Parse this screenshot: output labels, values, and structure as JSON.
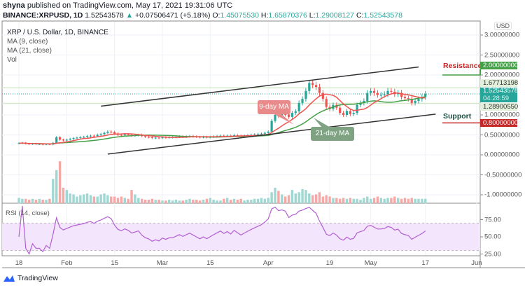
{
  "header": {
    "publisher": "shyna",
    "published_text": "published on TradingView.com, May 17, 2021 19:31:06 UTC",
    "symbol": "BINANCE:XRPUSD, 1D",
    "last": "1.52543578",
    "change": "+0.07506471 (+5.18%)",
    "o_label": "O:",
    "o": "1.45075530",
    "h_label": "H:",
    "h": "1.65870376",
    "l_label": "L:",
    "l": "1.29008127",
    "c_label": "C:",
    "c": "1.52543578"
  },
  "legend": {
    "title": "XRP / U.S. Dollar, 1D, BINANCE",
    "ma9": "MA (9, close)",
    "ma21": "MA (21, close)",
    "vol": "Vol"
  },
  "currency": "USD",
  "annotations": {
    "resistance": "Resistance",
    "resistance_value": "2.00000000",
    "support": "Support",
    "support_value": "0.80000000",
    "level_high": "1.67713198",
    "level_low": "1.28900550",
    "last_price": "1.52543578",
    "countdown": "04:28:59",
    "ma9_callout": "9-day MA",
    "ma21_callout": "21-day MA"
  },
  "rsi": {
    "label": "RSI (14, close)",
    "ticks": [
      "75.00",
      "50.00",
      "25.00"
    ]
  },
  "brand": "TradingView",
  "colors": {
    "up": "#26a69a",
    "down": "#ef5350",
    "ma9": "#ef5350",
    "ma21": "#43a047",
    "rsi": "#b35fd3",
    "resistance": "#43a047",
    "support": "#c62828"
  },
  "chart_data": {
    "type": "candlestick",
    "title": "XRP / U.S. Dollar, 1D, BINANCE",
    "y_ticks": [
      "3.00000000",
      "2.50000000",
      "2.00000000",
      "1.00000000",
      "0.50000000",
      "0.00000000",
      "-0.50000000",
      "-1.00000000"
    ],
    "y_tick_values": [
      3,
      2.5,
      2,
      1,
      0.5,
      0,
      -0.5,
      -1
    ],
    "ylim": [
      -1.2,
      3.1
    ],
    "x_ticks": [
      {
        "label": "18",
        "date": "2021-01-18"
      },
      {
        "label": "Feb",
        "date": "2021-02-01"
      },
      {
        "label": "15",
        "date": "2021-02-15"
      },
      {
        "label": "Mar",
        "date": "2021-03-01"
      },
      {
        "label": "15",
        "date": "2021-03-15"
      },
      {
        "label": "Apr",
        "date": "2021-04-01"
      },
      {
        "label": "19",
        "date": "2021-04-19"
      },
      {
        "label": "May",
        "date": "2021-05-01"
      },
      {
        "label": "17",
        "date": "2021-05-17"
      },
      {
        "label": "Jun",
        "date": "2021-06-01"
      }
    ],
    "closes_by_month": [
      {
        "month": "2021-01",
        "first_day": 18,
        "values": [
          0.29,
          0.3,
          0.28,
          0.27,
          0.28,
          0.27,
          0.27,
          0.26,
          0.27,
          0.26,
          0.3,
          0.44,
          0.38,
          0.36
        ]
      },
      {
        "month": "2021-02",
        "first_day": 1,
        "values": [
          0.38,
          0.4,
          0.42,
          0.43,
          0.44,
          0.45,
          0.47,
          0.48,
          0.47,
          0.5,
          0.52,
          0.55,
          0.58,
          0.57,
          0.53,
          0.5,
          0.49,
          0.51,
          0.5,
          0.48,
          0.49,
          0.5,
          0.47,
          0.45,
          0.44,
          0.42,
          0.43,
          0.42
        ]
      },
      {
        "month": "2021-03",
        "first_day": 1,
        "values": [
          0.44,
          0.43,
          0.44,
          0.44,
          0.45,
          0.46,
          0.45,
          0.46,
          0.47,
          0.46,
          0.45,
          0.44,
          0.45,
          0.44,
          0.45,
          0.46,
          0.47,
          0.48,
          0.47,
          0.48,
          0.47,
          0.49,
          0.48,
          0.47,
          0.48,
          0.49,
          0.5,
          0.51,
          0.52,
          0.53,
          0.55
        ]
      },
      {
        "month": "2021-04",
        "first_day": 1,
        "values": [
          0.58,
          0.85,
          1.0,
          0.97,
          1.02,
          1.01,
          0.95,
          1.05,
          1.09,
          1.3,
          1.4,
          1.6,
          1.8,
          1.75,
          1.7,
          1.55,
          1.4,
          1.2,
          1.15,
          1.25,
          1.18,
          1.05,
          1.0,
          1.1,
          1.02,
          1.05,
          1.25,
          1.3,
          1.35,
          1.55
        ]
      },
      {
        "month": "2021-05",
        "first_day": 1,
        "values": [
          1.6,
          1.55,
          1.5,
          1.5,
          1.52,
          1.6,
          1.58,
          1.52,
          1.55,
          1.45,
          1.42,
          1.4,
          1.3,
          1.35,
          1.4,
          1.45,
          1.52543578
        ]
      }
    ],
    "volume_relative": [
      0.12,
      0.1,
      0.1,
      0.08,
      0.1,
      0.08,
      0.1,
      0.08,
      0.08,
      0.1,
      0.55,
      0.75,
      0.95,
      0.35,
      0.3,
      0.22,
      0.2,
      0.15,
      0.18,
      0.2,
      0.22,
      0.18,
      0.15,
      0.15,
      0.2,
      0.22,
      0.18,
      0.15,
      0.15,
      0.12,
      0.15,
      0.12,
      0.1,
      0.3,
      0.2,
      0.12,
      0.1,
      0.08,
      0.08,
      0.1,
      0.08,
      0.08,
      0.06,
      0.06,
      0.08,
      0.06,
      0.08,
      0.06,
      0.06,
      0.08,
      0.1,
      0.08,
      0.08,
      0.06,
      0.08,
      0.1,
      0.12,
      0.08,
      0.06,
      0.06,
      0.1,
      0.12,
      0.08,
      0.1,
      0.08,
      0.1,
      0.06,
      0.08,
      0.08,
      0.1,
      0.1,
      0.12,
      0.1,
      0.12,
      0.25,
      0.35,
      0.28,
      0.2,
      0.15,
      0.18,
      0.3,
      0.22,
      0.25,
      0.32,
      0.3,
      0.22,
      0.18,
      0.2,
      0.25,
      0.15,
      0.18,
      0.15,
      0.12,
      0.12,
      0.1,
      0.12,
      0.1,
      0.12,
      0.1,
      0.1,
      0.08,
      0.12,
      0.15,
      0.1,
      0.12,
      0.15,
      0.12,
      0.1,
      0.12,
      0.12,
      0.15,
      0.12,
      0.1,
      0.12,
      0.1,
      0.12,
      0.1,
      0.1,
      0.1,
      0.1
    ],
    "ma_periods": [
      9,
      21
    ],
    "rsi_period": 14,
    "rsi_ylim": [
      20,
      95
    ],
    "rsi_band": [
      30,
      70
    ],
    "resistance_level": 2.0,
    "support_level": 0.8,
    "horizontal_levels": [
      1.67713198,
      1.2890055
    ],
    "trendlines": [
      {
        "from": [
          "2021-02-11",
          1.22
        ],
        "to": [
          "2021-05-15",
          2.2
        ]
      },
      {
        "from": [
          "2021-02-13",
          0.02
        ],
        "to": [
          "2021-05-20",
          1.02
        ]
      }
    ],
    "grid": true
  }
}
